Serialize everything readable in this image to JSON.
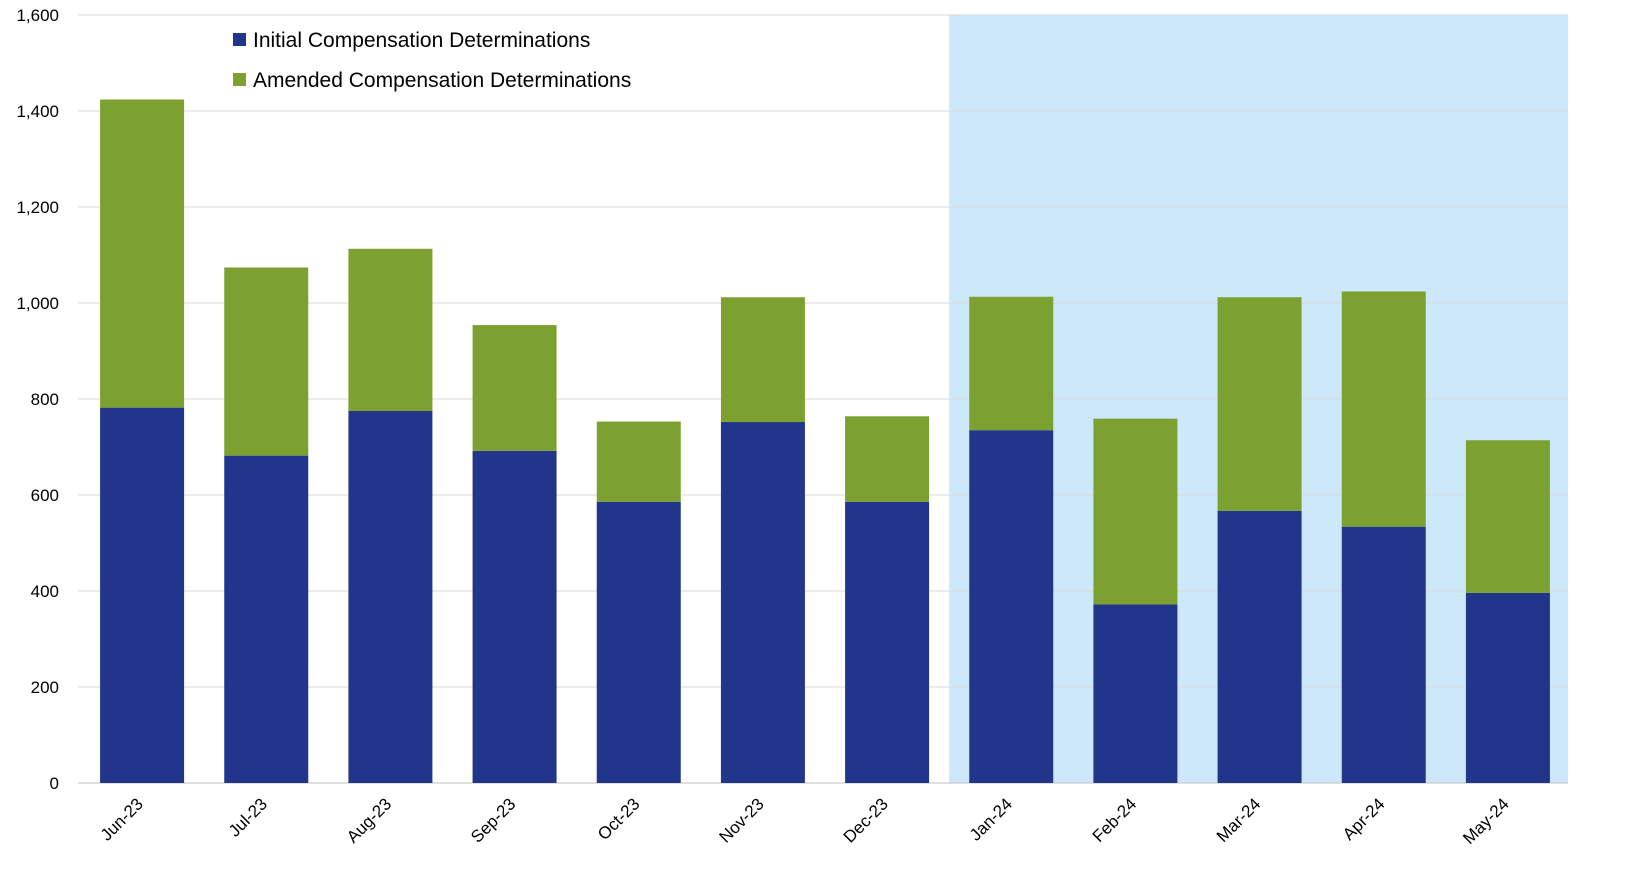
{
  "chart_data": {
    "type": "bar",
    "stacked": true,
    "title": "",
    "xlabel": "",
    "ylabel": "",
    "ylim": [
      0,
      1600
    ],
    "yticks": [
      0,
      200,
      400,
      600,
      800,
      1000,
      1200,
      1400,
      1600
    ],
    "ytick_labels": [
      "0",
      "200",
      "400",
      "600",
      "800",
      "1,000",
      "1,200",
      "1,400",
      "1,600"
    ],
    "grid": true,
    "legend_position": "top-left",
    "categories": [
      "Jun-23",
      "Jul-23",
      "Aug-23",
      "Sep-23",
      "Oct-23",
      "Nov-23",
      "Dec-23",
      "Jan-24",
      "Feb-24",
      "Mar-24",
      "Apr-24",
      "May-24"
    ],
    "series": [
      {
        "name": "Initial Compensation Determinations",
        "color": "#21368A",
        "values": [
          782,
          682,
          775,
          692,
          586,
          752,
          586,
          735,
          372,
          567,
          534,
          396
        ]
      },
      {
        "name": "Amended Compensation Determinations",
        "color": "#7CA130",
        "values": [
          642,
          392,
          338,
          262,
          167,
          260,
          178,
          278,
          387,
          445,
          490,
          318
        ]
      }
    ],
    "highlight_region": {
      "from_category": "Jan-24",
      "to_category": "May-24",
      "color": "#CCE8FA"
    },
    "gridline_color": "#D9D9D9"
  }
}
